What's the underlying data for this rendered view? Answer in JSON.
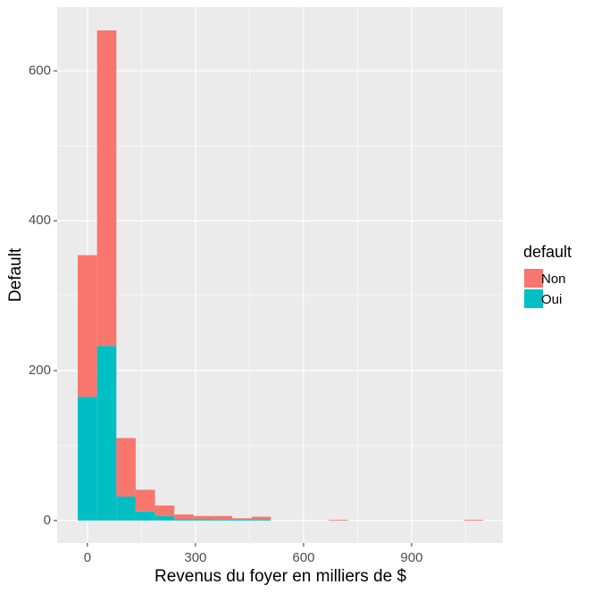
{
  "chart_data": {
    "type": "histogram",
    "stacked": true,
    "x_label": "Revenus du foyer en milliers de $",
    "y_label": "Default",
    "legend_title": "default",
    "legend": "right",
    "bins": [
      -26.8,
      26.8,
      80.4,
      134,
      187.6,
      241.2,
      294.8,
      348.4,
      402,
      455.6,
      509.2,
      562.8,
      616.4,
      670,
      723.6,
      777.2,
      830.8,
      884.4,
      938,
      991.6,
      1045.2,
      1098.8
    ],
    "series": [
      {
        "name": "Non",
        "color": "#F8766D",
        "values": [
          189,
          421,
          78,
          29,
          14,
          6,
          4,
          5,
          2,
          4,
          0,
          0,
          0,
          1,
          0,
          0,
          0,
          0,
          0,
          0,
          1
        ]
      },
      {
        "name": "Oui",
        "color": "#00BFC4",
        "values": [
          165,
          233,
          32,
          12,
          6,
          2,
          2,
          1,
          1,
          1,
          0,
          0,
          0,
          0,
          0,
          0,
          0,
          0,
          0,
          0,
          0
        ]
      }
    ],
    "xlim": [
      -84,
      1153
    ],
    "ylim": [
      -30,
      685
    ],
    "xticks": [
      0,
      300,
      600,
      900
    ],
    "yticks": [
      0,
      200,
      400,
      600
    ],
    "grid": true
  }
}
